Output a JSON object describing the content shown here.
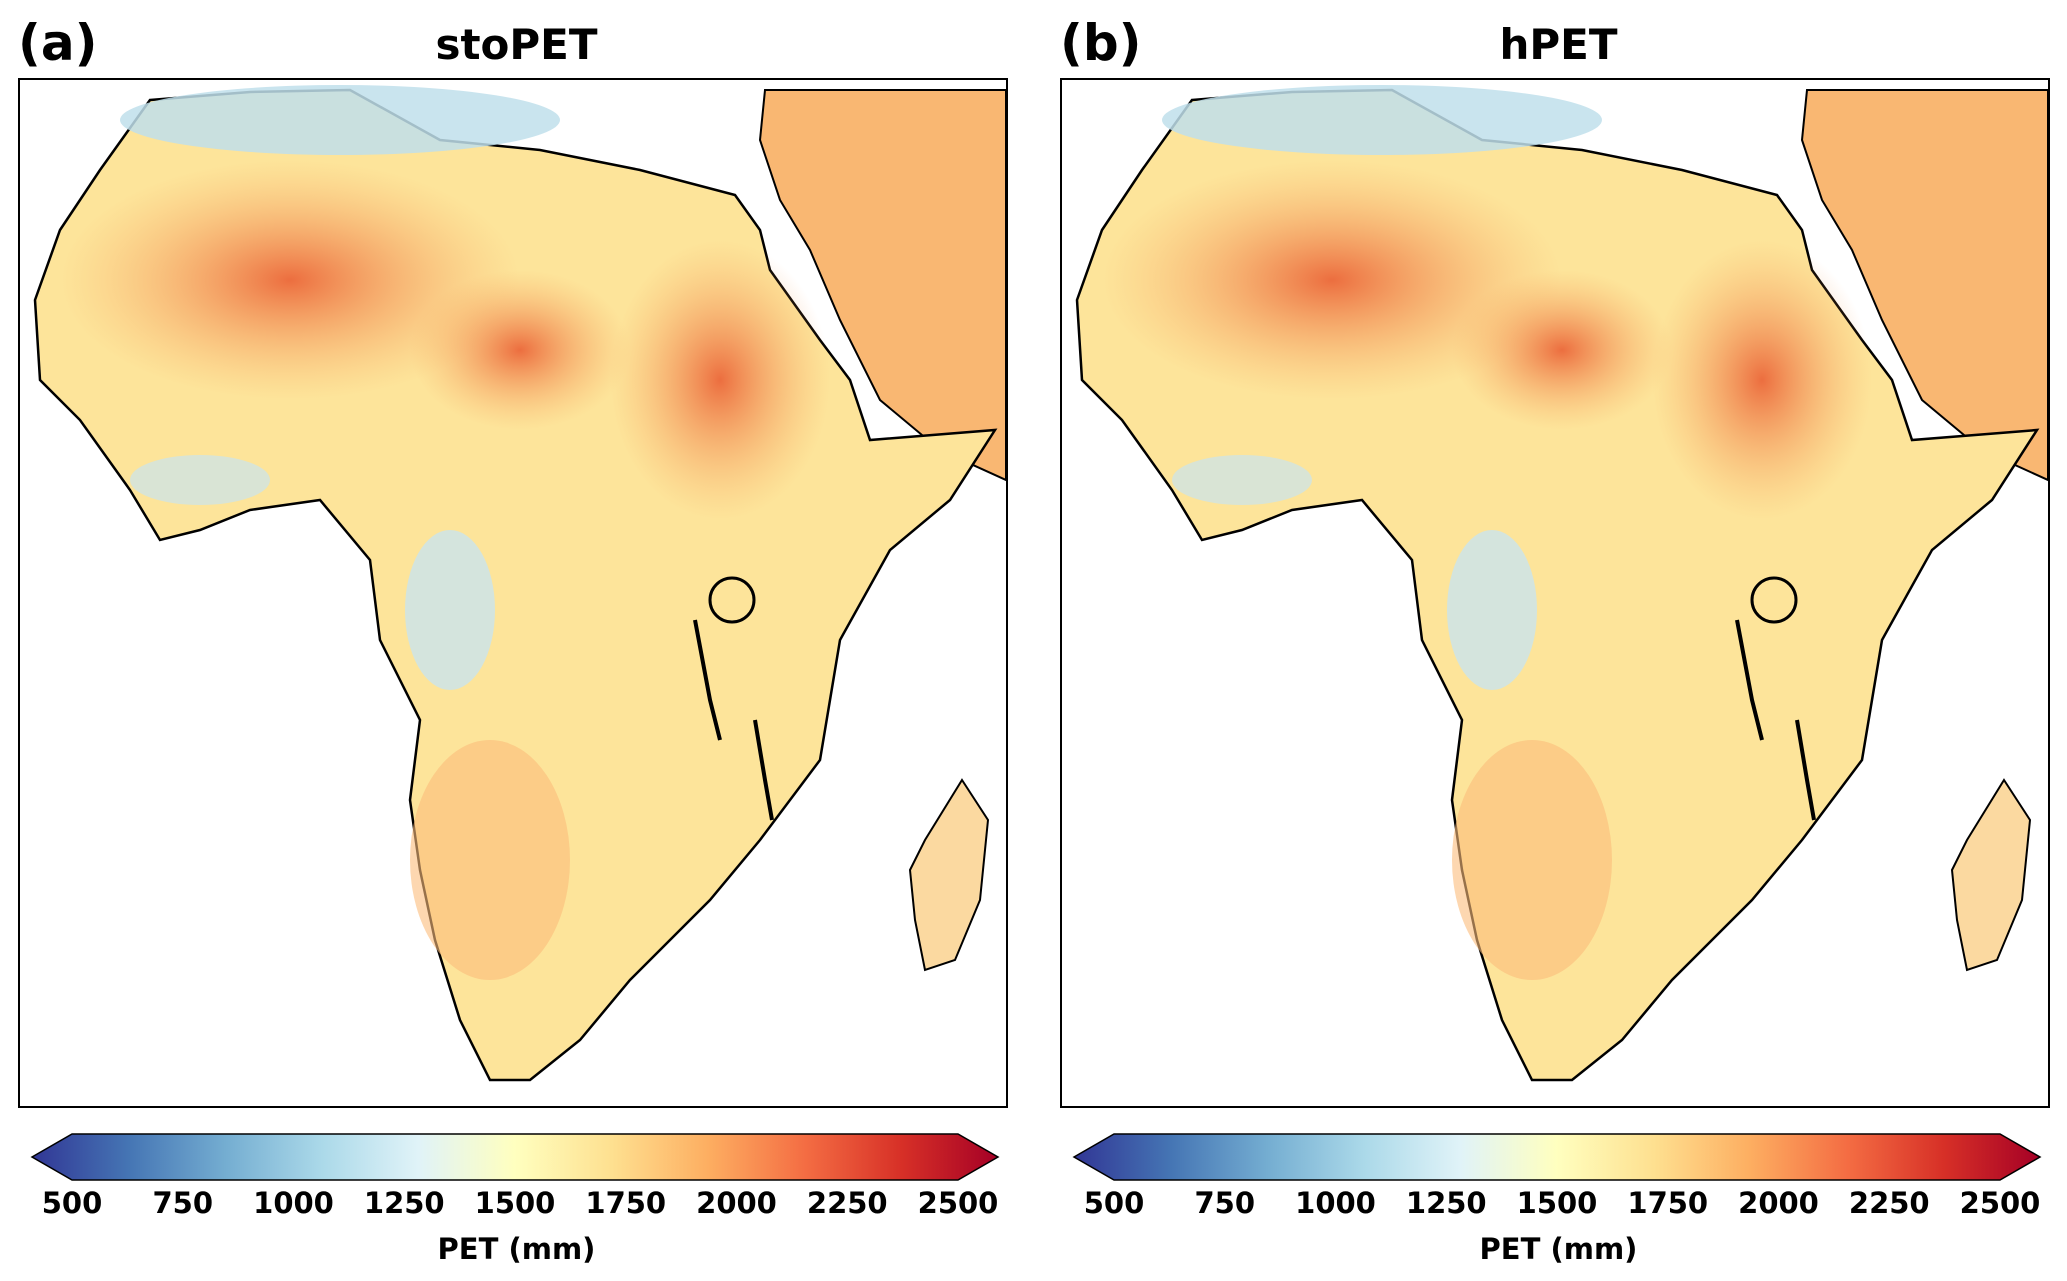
{
  "figure": {
    "panels": [
      {
        "letter": "(a)",
        "title": "stoPET"
      },
      {
        "letter": "(b)",
        "title": "hPET"
      }
    ]
  },
  "colorbar": {
    "label": "PET (mm)",
    "ticks": [
      "500",
      "750",
      "1000",
      "1250",
      "1500",
      "1750",
      "2000",
      "2250",
      "2500"
    ],
    "range": [
      500,
      2500
    ],
    "colormap": [
      "#313695",
      "#4575b4",
      "#74add1",
      "#abd9e9",
      "#e0f3f8",
      "#ffffbf",
      "#fee090",
      "#fdae61",
      "#f46d43",
      "#d73027",
      "#a50026"
    ],
    "extend": "both"
  },
  "colors": {
    "ocean": "#ffffff",
    "coastline": "#000000",
    "land_dominant": "#fde49a",
    "hot_spot": "#e8532e",
    "cool_area": "#bcdceb"
  }
}
